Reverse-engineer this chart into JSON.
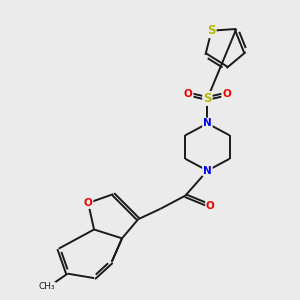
{
  "background_color": "#ebebeb",
  "bond_color": "#1a1a1a",
  "atom_colors": {
    "S": "#b8b800",
    "N": "#0000ee",
    "O": "#ee0000",
    "C": "#1a1a1a"
  },
  "bond_width": 1.4,
  "figsize": [
    3.0,
    3.0
  ],
  "dpi": 100,
  "xlim": [
    0,
    10
  ],
  "ylim": [
    0,
    10
  ]
}
